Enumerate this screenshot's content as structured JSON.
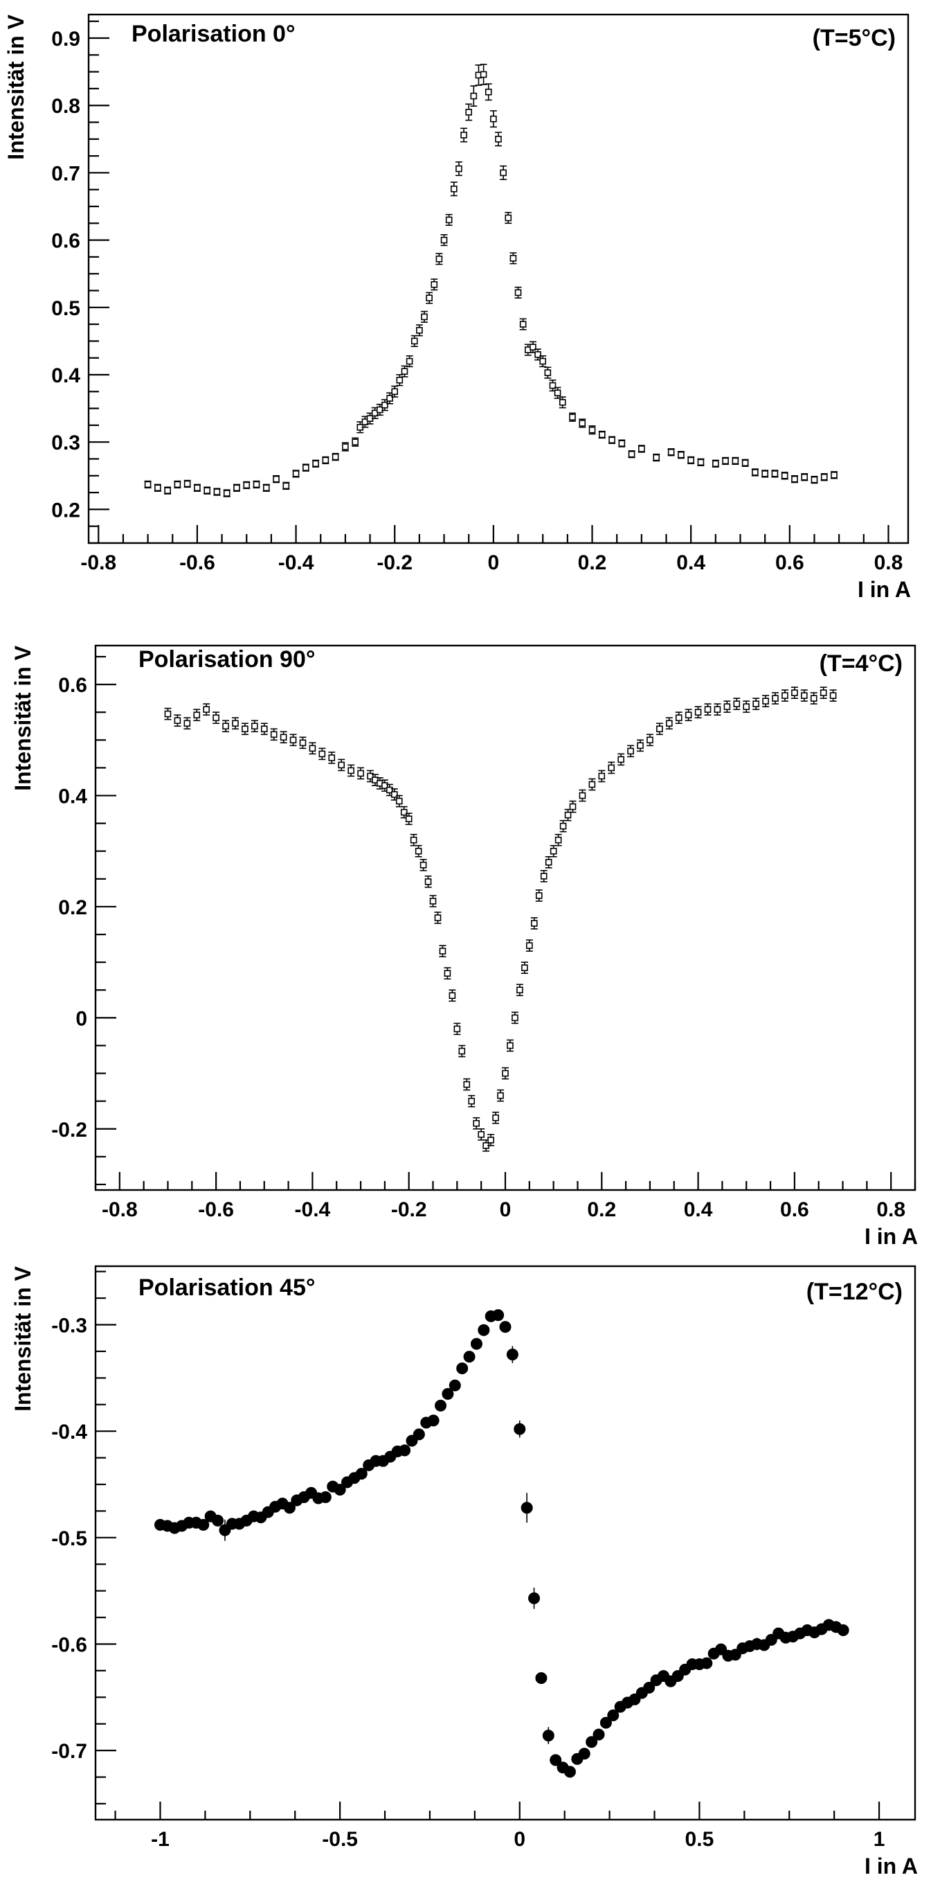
{
  "chart_data": [
    {
      "type": "scatter",
      "title": "Polarisation 0°",
      "annotation": "(T=5°C)",
      "xlabel": "I in A",
      "ylabel": "Intensität in V",
      "xlim": [
        -0.82,
        0.84
      ],
      "ylim": [
        0.15,
        0.935
      ],
      "xticks": [
        -0.8,
        -0.6,
        -0.4,
        -0.2,
        0,
        0.2,
        0.4,
        0.6,
        0.8
      ],
      "xtick_labels": [
        "-0.8",
        "-0.6",
        "-0.4",
        "-0.2",
        "0",
        "0.2",
        "0.4",
        "0.6",
        "0.8"
      ],
      "yticks": [
        0.2,
        0.3,
        0.4,
        0.5,
        0.6,
        0.7,
        0.8,
        0.9
      ],
      "ytick_labels": [
        "0.2",
        "0.3",
        "0.4",
        "0.5",
        "0.6",
        "0.7",
        "0.8",
        "0.9"
      ],
      "marker": "open-square",
      "grid": false,
      "series": [
        {
          "x": [
            -0.7,
            -0.68,
            -0.66,
            -0.64,
            -0.62,
            -0.6,
            -0.58,
            -0.56,
            -0.54,
            -0.52,
            -0.5,
            -0.48,
            -0.46,
            -0.44,
            -0.42,
            -0.4,
            -0.38,
            -0.36,
            -0.34,
            -0.32,
            -0.3,
            -0.28,
            -0.27,
            -0.26,
            -0.25,
            -0.24,
            -0.23,
            -0.22,
            -0.21,
            -0.2,
            -0.19,
            -0.18,
            -0.17,
            -0.16,
            -0.15,
            -0.14,
            -0.13,
            -0.12,
            -0.11,
            -0.1,
            -0.09,
            -0.08,
            -0.07,
            -0.06,
            -0.05,
            -0.04,
            -0.03,
            -0.02,
            -0.01,
            0.0,
            0.01,
            0.02,
            0.03,
            0.04,
            0.05,
            0.06,
            0.07,
            0.08,
            0.09,
            0.1,
            0.11,
            0.12,
            0.13,
            0.14,
            0.16,
            0.18,
            0.2,
            0.22,
            0.24,
            0.26,
            0.28,
            0.3,
            0.33,
            0.36,
            0.38,
            0.4,
            0.42,
            0.45,
            0.47,
            0.49,
            0.51,
            0.53,
            0.55,
            0.57,
            0.59,
            0.61,
            0.63,
            0.65,
            0.67,
            0.69
          ],
          "y": [
            0.237,
            0.232,
            0.228,
            0.237,
            0.238,
            0.232,
            0.228,
            0.226,
            0.224,
            0.232,
            0.236,
            0.237,
            0.232,
            0.245,
            0.235,
            0.253,
            0.262,
            0.268,
            0.273,
            0.278,
            0.293,
            0.3,
            0.322,
            0.33,
            0.335,
            0.343,
            0.348,
            0.355,
            0.365,
            0.375,
            0.392,
            0.405,
            0.42,
            0.45,
            0.466,
            0.486,
            0.514,
            0.534,
            0.572,
            0.6,
            0.63,
            0.676,
            0.706,
            0.756,
            0.79,
            0.814,
            0.845,
            0.846,
            0.82,
            0.78,
            0.75,
            0.7,
            0.633,
            0.573,
            0.522,
            0.475,
            0.437,
            0.441,
            0.43,
            0.42,
            0.403,
            0.384,
            0.373,
            0.359,
            0.337,
            0.328,
            0.318,
            0.311,
            0.303,
            0.298,
            0.282,
            0.29,
            0.277,
            0.285,
            0.281,
            0.273,
            0.27,
            0.268,
            0.272,
            0.272,
            0.269,
            0.255,
            0.253,
            0.253,
            0.25,
            0.245,
            0.248,
            0.244,
            0.248,
            0.251
          ],
          "yerr": [
            0.005,
            0.005,
            0.005,
            0.005,
            0.005,
            0.005,
            0.005,
            0.005,
            0.005,
            0.005,
            0.005,
            0.005,
            0.005,
            0.005,
            0.005,
            0.005,
            0.005,
            0.005,
            0.005,
            0.005,
            0.006,
            0.006,
            0.008,
            0.008,
            0.008,
            0.008,
            0.008,
            0.008,
            0.008,
            0.008,
            0.008,
            0.008,
            0.008,
            0.008,
            0.008,
            0.008,
            0.008,
            0.008,
            0.008,
            0.008,
            0.008,
            0.01,
            0.01,
            0.01,
            0.012,
            0.015,
            0.015,
            0.015,
            0.012,
            0.012,
            0.01,
            0.01,
            0.008,
            0.008,
            0.008,
            0.008,
            0.008,
            0.008,
            0.008,
            0.008,
            0.008,
            0.008,
            0.008,
            0.008,
            0.006,
            0.006,
            0.006,
            0.005,
            0.005,
            0.005,
            0.005,
            0.005,
            0.005,
            0.005,
            0.005,
            0.005,
            0.005,
            0.005,
            0.005,
            0.005,
            0.005,
            0.005,
            0.005,
            0.005,
            0.005,
            0.005,
            0.005,
            0.005,
            0.005,
            0.005
          ]
        }
      ]
    },
    {
      "type": "scatter",
      "title": "Polarisation 90°",
      "annotation": "(T=4°C)",
      "xlabel": "I in A",
      "ylabel": "Intensität in V",
      "xlim": [
        -0.85,
        0.85
      ],
      "ylim": [
        -0.31,
        0.67
      ],
      "xticks": [
        -0.8,
        -0.6,
        -0.4,
        -0.2,
        0,
        0.2,
        0.4,
        0.6,
        0.8
      ],
      "xtick_labels": [
        "-0.8",
        "-0.6",
        "-0.4",
        "-0.2",
        "0",
        "0.2",
        "0.4",
        "0.6",
        "0.8"
      ],
      "yticks": [
        -0.2,
        0,
        0.2,
        0.4,
        0.6
      ],
      "ytick_labels": [
        "-0.2",
        "0",
        "0.2",
        "0.4",
        "0.6"
      ],
      "marker": "open-square",
      "grid": false,
      "series": [
        {
          "x": [
            -0.7,
            -0.68,
            -0.66,
            -0.64,
            -0.62,
            -0.6,
            -0.58,
            -0.56,
            -0.54,
            -0.52,
            -0.5,
            -0.48,
            -0.46,
            -0.44,
            -0.42,
            -0.4,
            -0.38,
            -0.36,
            -0.34,
            -0.32,
            -0.3,
            -0.28,
            -0.27,
            -0.26,
            -0.25,
            -0.24,
            -0.23,
            -0.22,
            -0.21,
            -0.2,
            -0.19,
            -0.18,
            -0.17,
            -0.16,
            -0.15,
            -0.14,
            -0.13,
            -0.12,
            -0.11,
            -0.1,
            -0.09,
            -0.08,
            -0.07,
            -0.06,
            -0.05,
            -0.04,
            -0.03,
            -0.02,
            -0.01,
            0.0,
            0.01,
            0.02,
            0.03,
            0.04,
            0.05,
            0.06,
            0.07,
            0.08,
            0.09,
            0.1,
            0.11,
            0.12,
            0.13,
            0.14,
            0.16,
            0.18,
            0.2,
            0.22,
            0.24,
            0.26,
            0.28,
            0.3,
            0.32,
            0.34,
            0.36,
            0.38,
            0.4,
            0.42,
            0.44,
            0.46,
            0.48,
            0.5,
            0.52,
            0.54,
            0.56,
            0.58,
            0.6,
            0.62,
            0.64,
            0.66,
            0.68
          ],
          "y": [
            0.547,
            0.535,
            0.53,
            0.545,
            0.555,
            0.54,
            0.525,
            0.53,
            0.52,
            0.525,
            0.52,
            0.51,
            0.505,
            0.5,
            0.495,
            0.485,
            0.475,
            0.468,
            0.455,
            0.445,
            0.44,
            0.435,
            0.428,
            0.422,
            0.418,
            0.41,
            0.402,
            0.39,
            0.37,
            0.358,
            0.32,
            0.3,
            0.275,
            0.245,
            0.21,
            0.18,
            0.12,
            0.08,
            0.04,
            -0.02,
            -0.06,
            -0.12,
            -0.15,
            -0.19,
            -0.21,
            -0.23,
            -0.22,
            -0.18,
            -0.14,
            -0.1,
            -0.05,
            0.0,
            0.05,
            0.09,
            0.13,
            0.17,
            0.22,
            0.255,
            0.28,
            0.3,
            0.32,
            0.345,
            0.365,
            0.38,
            0.4,
            0.42,
            0.435,
            0.45,
            0.465,
            0.48,
            0.49,
            0.5,
            0.52,
            0.53,
            0.54,
            0.545,
            0.55,
            0.555,
            0.555,
            0.56,
            0.565,
            0.56,
            0.565,
            0.57,
            0.575,
            0.58,
            0.585,
            0.58,
            0.575,
            0.585,
            0.58
          ],
          "yerr": [
            0.01,
            0.01,
            0.01,
            0.01,
            0.01,
            0.01,
            0.01,
            0.01,
            0.01,
            0.01,
            0.01,
            0.01,
            0.01,
            0.01,
            0.01,
            0.01,
            0.01,
            0.01,
            0.01,
            0.01,
            0.01,
            0.01,
            0.01,
            0.01,
            0.01,
            0.01,
            0.01,
            0.01,
            0.01,
            0.01,
            0.01,
            0.01,
            0.01,
            0.01,
            0.01,
            0.01,
            0.01,
            0.01,
            0.01,
            0.01,
            0.01,
            0.01,
            0.01,
            0.01,
            0.01,
            0.01,
            0.01,
            0.01,
            0.01,
            0.01,
            0.01,
            0.01,
            0.01,
            0.01,
            0.01,
            0.01,
            0.01,
            0.01,
            0.01,
            0.01,
            0.01,
            0.01,
            0.01,
            0.01,
            0.01,
            0.01,
            0.01,
            0.01,
            0.01,
            0.01,
            0.01,
            0.01,
            0.01,
            0.01,
            0.01,
            0.01,
            0.01,
            0.01,
            0.01,
            0.01,
            0.01,
            0.01,
            0.01,
            0.01,
            0.01,
            0.01,
            0.01,
            0.01,
            0.01,
            0.01,
            0.01
          ]
        }
      ]
    },
    {
      "type": "scatter",
      "title": "Polarisation 45°",
      "annotation": "(T=12°C)",
      "xlabel": "I in A",
      "ylabel": "Intensität in V",
      "xlim": [
        -1.18,
        1.1
      ],
      "ylim": [
        -0.765,
        -0.245
      ],
      "xticks": [
        -1,
        -0.5,
        0,
        0.5,
        1
      ],
      "xtick_labels": [
        "-1",
        "-0.5",
        "0",
        "0.5",
        "1"
      ],
      "yticks": [
        -0.7,
        -0.6,
        -0.5,
        -0.4,
        -0.3
      ],
      "ytick_labels": [
        "-0.7",
        "-0.6",
        "-0.5",
        "-0.4",
        "-0.3"
      ],
      "marker": "filled-circle",
      "grid": false,
      "series": [
        {
          "x": [
            -1.0,
            -0.98,
            -0.96,
            -0.94,
            -0.92,
            -0.9,
            -0.88,
            -0.86,
            -0.84,
            -0.82,
            -0.8,
            -0.78,
            -0.76,
            -0.74,
            -0.72,
            -0.7,
            -0.68,
            -0.66,
            -0.64,
            -0.62,
            -0.6,
            -0.58,
            -0.56,
            -0.54,
            -0.52,
            -0.5,
            -0.48,
            -0.46,
            -0.44,
            -0.42,
            -0.4,
            -0.38,
            -0.36,
            -0.34,
            -0.32,
            -0.3,
            -0.28,
            -0.26,
            -0.24,
            -0.22,
            -0.2,
            -0.18,
            -0.16,
            -0.14,
            -0.12,
            -0.1,
            -0.08,
            -0.06,
            -0.04,
            -0.02,
            0.0,
            0.02,
            0.04,
            0.06,
            0.08,
            0.1,
            0.12,
            0.14,
            0.16,
            0.18,
            0.2,
            0.22,
            0.24,
            0.26,
            0.28,
            0.3,
            0.32,
            0.34,
            0.36,
            0.38,
            0.4,
            0.42,
            0.44,
            0.46,
            0.48,
            0.5,
            0.52,
            0.54,
            0.56,
            0.58,
            0.6,
            0.62,
            0.64,
            0.66,
            0.68,
            0.7,
            0.72,
            0.74,
            0.76,
            0.78,
            0.8,
            0.82,
            0.84,
            0.86,
            0.88,
            0.9
          ],
          "y": [
            -0.488,
            -0.489,
            -0.491,
            -0.489,
            -0.486,
            -0.486,
            -0.488,
            -0.48,
            -0.484,
            -0.493,
            -0.487,
            -0.487,
            -0.484,
            -0.48,
            -0.481,
            -0.476,
            -0.471,
            -0.468,
            -0.472,
            -0.465,
            -0.462,
            -0.458,
            -0.463,
            -0.462,
            -0.452,
            -0.455,
            -0.448,
            -0.444,
            -0.44,
            -0.432,
            -0.428,
            -0.428,
            -0.424,
            -0.419,
            -0.418,
            -0.409,
            -0.403,
            -0.392,
            -0.39,
            -0.376,
            -0.365,
            -0.357,
            -0.341,
            -0.33,
            -0.318,
            -0.305,
            -0.292,
            -0.291,
            -0.302,
            -0.328,
            -0.398,
            -0.472,
            -0.557,
            -0.632,
            -0.686,
            -0.709,
            -0.716,
            -0.72,
            -0.708,
            -0.703,
            -0.692,
            -0.685,
            -0.674,
            -0.667,
            -0.659,
            -0.655,
            -0.652,
            -0.646,
            -0.641,
            -0.634,
            -0.63,
            -0.635,
            -0.63,
            -0.624,
            -0.619,
            -0.619,
            -0.618,
            -0.609,
            -0.605,
            -0.611,
            -0.61,
            -0.604,
            -0.602,
            -0.6,
            -0.601,
            -0.596,
            -0.59,
            -0.594,
            -0.593,
            -0.59,
            -0.587,
            -0.589,
            -0.586,
            -0.582,
            -0.584,
            -0.587
          ],
          "yerr": [
            0.004,
            0.004,
            0.004,
            0.004,
            0.004,
            0.004,
            0.004,
            0.004,
            0.004,
            0.01,
            0.004,
            0.004,
            0.004,
            0.004,
            0.004,
            0.004,
            0.004,
            0.004,
            0.004,
            0.004,
            0.004,
            0.004,
            0.004,
            0.004,
            0.004,
            0.004,
            0.004,
            0.004,
            0.004,
            0.004,
            0.004,
            0.004,
            0.004,
            0.004,
            0.004,
            0.004,
            0.004,
            0.004,
            0.004,
            0.004,
            0.004,
            0.004,
            0.004,
            0.004,
            0.004,
            0.004,
            0.004,
            0.004,
            0.004,
            0.008,
            0.008,
            0.014,
            0.01,
            0.004,
            0.008,
            0.004,
            0.004,
            0.004,
            0.004,
            0.004,
            0.004,
            0.004,
            0.004,
            0.004,
            0.004,
            0.004,
            0.004,
            0.004,
            0.004,
            0.004,
            0.004,
            0.004,
            0.004,
            0.004,
            0.004,
            0.004,
            0.004,
            0.004,
            0.004,
            0.004,
            0.004,
            0.004,
            0.004,
            0.006,
            0.004,
            0.004,
            0.004,
            0.004,
            0.004,
            0.004,
            0.004,
            0.004,
            0.004,
            0.004,
            0.004,
            0.004
          ]
        }
      ]
    }
  ]
}
